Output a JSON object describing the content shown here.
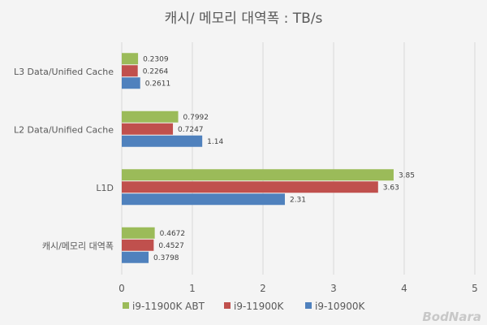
{
  "chart_data": {
    "type": "bar",
    "orientation": "horizontal",
    "title": "캐시/ 메모리 대역폭 : TB/s",
    "categories": [
      "L3 Data/Unified Cache",
      "L2 Data/Unified Cache",
      "L1D",
      "캐시/메모리 대역폭"
    ],
    "series": [
      {
        "name": "i9-11900K ABT",
        "color": "#9bbb59",
        "values": [
          0.2309,
          0.7992,
          3.85,
          0.4672
        ],
        "labels": [
          "0.2309",
          "0.7992",
          "3.85",
          "0.4672"
        ]
      },
      {
        "name": "i9-11900K",
        "color": "#c0504d",
        "values": [
          0.2264,
          0.7247,
          3.63,
          0.4527
        ],
        "labels": [
          "0.2264",
          "0.7247",
          "3.63",
          "0.4527"
        ]
      },
      {
        "name": "i9-10900K",
        "color": "#4f81bd",
        "values": [
          0.2611,
          1.14,
          2.31,
          0.3798
        ],
        "labels": [
          "0.2611",
          "1.14",
          "2.31",
          "0.3798"
        ]
      }
    ],
    "xlim": [
      0,
      5
    ],
    "xticks": [
      "0",
      "1",
      "2",
      "3",
      "4",
      "5"
    ],
    "grid": true,
    "legend_position": "bottom"
  },
  "watermark": "BodNara"
}
